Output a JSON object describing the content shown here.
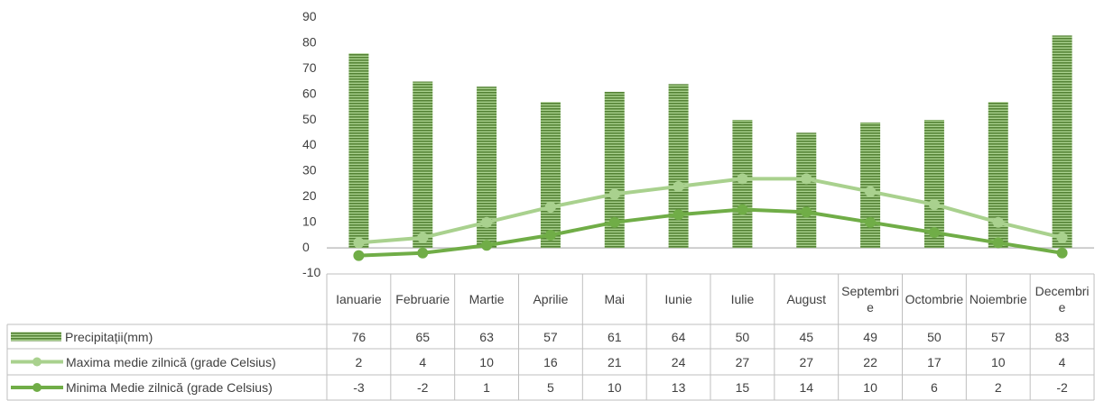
{
  "chart_data": {
    "type": "bar",
    "categories": [
      "Ianuarie",
      "Februarie",
      "Martie",
      "Aprilie",
      "Mai",
      "Iunie",
      "Iulie",
      "August",
      "Septembrie",
      "Octombrie",
      "Noiembrie",
      "Decembrie"
    ],
    "series": [
      {
        "name": "Precipitații(mm)",
        "type": "bar",
        "color": "#70ad47",
        "values": [
          76,
          65,
          63,
          57,
          61,
          64,
          50,
          45,
          49,
          50,
          57,
          83
        ]
      },
      {
        "name": "Maxima medie zilnică (grade Celsius)",
        "type": "line",
        "color": "#a9d18e",
        "values": [
          2,
          4,
          10,
          16,
          21,
          24,
          27,
          27,
          22,
          17,
          10,
          4
        ]
      },
      {
        "name": "Minima Medie zilnică (grade Celsius)",
        "type": "line",
        "color": "#70ad47",
        "values": [
          -3,
          -2,
          1,
          5,
          10,
          13,
          15,
          14,
          10,
          6,
          2,
          -2
        ]
      }
    ],
    "ylim": [
      -10,
      90
    ],
    "yticks": [
      -10,
      0,
      10,
      20,
      30,
      40,
      50,
      60,
      70,
      80,
      90
    ],
    "grid": false,
    "data_table": true
  }
}
